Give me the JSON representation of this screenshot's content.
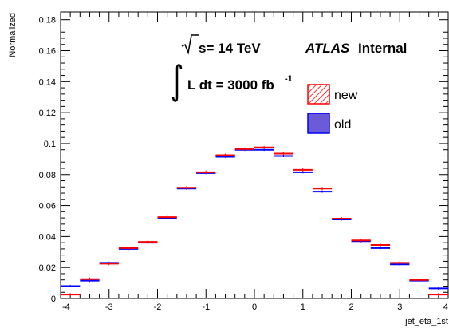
{
  "chart_data": {
    "type": "histogram",
    "xlabel": "jet_eta_1st",
    "ylabel": "Normalized",
    "xlim": [
      -4,
      4
    ],
    "ylim": [
      0,
      0.185
    ],
    "x_ticks": [
      -4,
      -3,
      -2,
      -1,
      0,
      1,
      2,
      3,
      4
    ],
    "x_tick_labels": [
      "-4",
      "-3",
      "-2",
      "-1",
      "0",
      "1",
      "2",
      "3",
      "4"
    ],
    "y_ticks": [
      0,
      0.02,
      0.04,
      0.06,
      0.08,
      0.1,
      0.12,
      0.14,
      0.16,
      0.18
    ],
    "y_tick_labels": [
      "0",
      "0.02",
      "0.04",
      "0.06",
      "0.08",
      "0.1",
      "0.12",
      "0.14",
      "0.16",
      "0.18"
    ],
    "bin_edges": [
      -4.0,
      -3.6,
      -3.2,
      -2.8,
      -2.4,
      -2.0,
      -1.6,
      -1.2,
      -0.8,
      -0.4,
      0.0,
      0.4,
      0.8,
      1.2,
      1.6,
      2.0,
      2.4,
      2.8,
      3.2,
      3.6,
      4.0
    ],
    "series": [
      {
        "name": "new",
        "color": "#ff0000",
        "values": [
          0.0025,
          0.0125,
          0.0225,
          0.0325,
          0.0365,
          0.0525,
          0.0715,
          0.0815,
          0.0925,
          0.0965,
          0.0975,
          0.0935,
          0.083,
          0.071,
          0.0515,
          0.0375,
          0.0345,
          0.023,
          0.012,
          0.0025
        ]
      },
      {
        "name": "old",
        "color": "#0000ff",
        "values": [
          0.008,
          0.0115,
          0.023,
          0.032,
          0.036,
          0.052,
          0.071,
          0.081,
          0.0915,
          0.096,
          0.096,
          0.092,
          0.0815,
          0.069,
          0.051,
          0.037,
          0.0325,
          0.022,
          0.0115,
          0.0065
        ]
      }
    ],
    "legend": {
      "position": "right",
      "entries": [
        {
          "label": "new",
          "color": "#ff0000",
          "style": "hatched"
        },
        {
          "label": "old",
          "color": "#0000ff",
          "style": "filled",
          "fill": "#6b5bd6"
        }
      ]
    },
    "annotations": {
      "energy_prefix": "s= 14 TeV",
      "atlas": "ATLAS",
      "internal": "Internal",
      "lumi_main": "L dt = 3000 fb",
      "lumi_sup": "-1"
    },
    "grid": false
  }
}
